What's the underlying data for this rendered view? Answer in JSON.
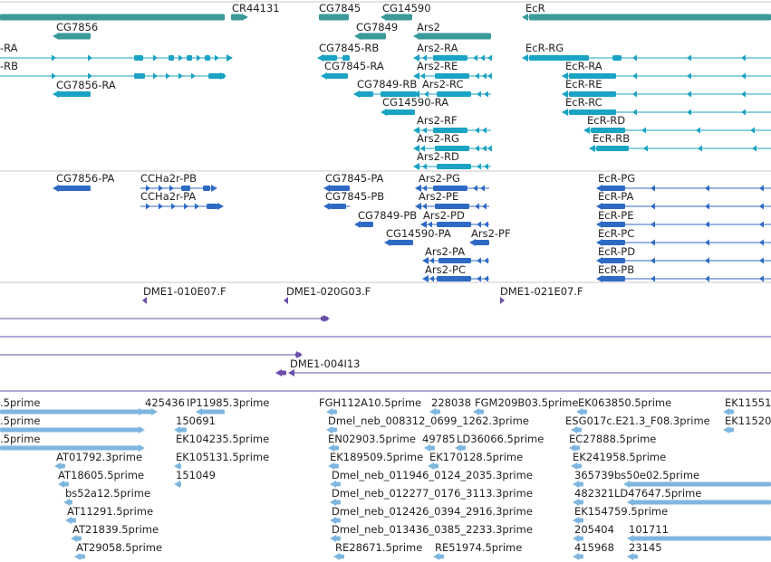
{
  "colors": {
    "gene": "#3a9a9a",
    "transcript": "#1aa3c2",
    "protein": "#2e6ac4",
    "clone": "#6a4ea8",
    "est": "#7fb6df",
    "divider": "#c8c8c8"
  },
  "gene_track": {
    "labels": [
      "CR44131",
      "CG7845",
      "CG14590",
      "EcR",
      "CG7856",
      "CG7849",
      "Ars2"
    ]
  },
  "transcript_track": {
    "labels": [
      "-RA",
      "-RB",
      "CG7856-RA",
      "CG7845-RB",
      "CG7845-RA",
      "CG7849-RB",
      "Ars2-RA",
      "Ars2-RE",
      "Ars2-RC",
      "CG14590-RA",
      "Ars2-RF",
      "Ars2-RG",
      "Ars2-RD",
      "EcR-RG",
      "EcR-RA",
      "EcR-RE",
      "EcR-RC",
      "EcR-RD",
      "EcR-RB"
    ]
  },
  "protein_track": {
    "labels": [
      "CG7856-PA",
      "CCHa2r-PB",
      "CCHa2r-PA",
      "CG7845-PA",
      "CG7845-PB",
      "CG7849-PB",
      "Ars2-PG",
      "Ars2-PE",
      "Ars2-PD",
      "CG14590-PA",
      "Ars2-PF",
      "Ars2-PA",
      "Ars2-PC",
      "EcR-PG",
      "EcR-PA",
      "EcR-PE",
      "EcR-PC",
      "EcR-PD",
      "EcR-PB"
    ]
  },
  "clone_track": {
    "labels": [
      "DME1-010E07.F",
      "DME1-020G03.F",
      "DME1-021E07.F",
      "DME1-004I13"
    ]
  },
  "est_track": {
    "labels": [
      ".5prime",
      ".5prime",
      ".5prime",
      "425436",
      "IP11985.3prime",
      "150691",
      "EK104235.5prime",
      "EK105131.5prime",
      "151049",
      "AT01792.3prime",
      "AT18605.5prime",
      "bs52a12.5prime",
      "AT11291.5prime",
      "AT21839.5prime",
      "AT29058.5prime",
      "FGH112A10.5prime",
      "228038",
      "FGM209B03.5prime",
      "Dmel_neb_008312_0699_1262.3prime",
      "EN02903.5prime",
      "49785",
      "LD36066.5prime",
      "EK189509.5prime",
      "EK170128.5prime",
      "Dmel_neb_011946_0124_2035.3prime",
      "Dmel_neb_012277_0176_3113.3prime",
      "Dmel_neb_012426_0394_2916.3prime",
      "Dmel_neb_013436_0385_2233.3prime",
      "RE28671.5prime",
      "RE51974.5prime",
      "EK063850.5prime",
      "EK11551",
      "ESG017c.E21.3_F08.3prime",
      "EK11520",
      "EC27888.5prime",
      "EK241958.5prime",
      "365739",
      "bs50e02.5prime",
      "482321",
      "LD47647.5prime",
      "EK154759.5prime",
      "205404",
      "101711",
      "415968",
      "23145"
    ]
  }
}
